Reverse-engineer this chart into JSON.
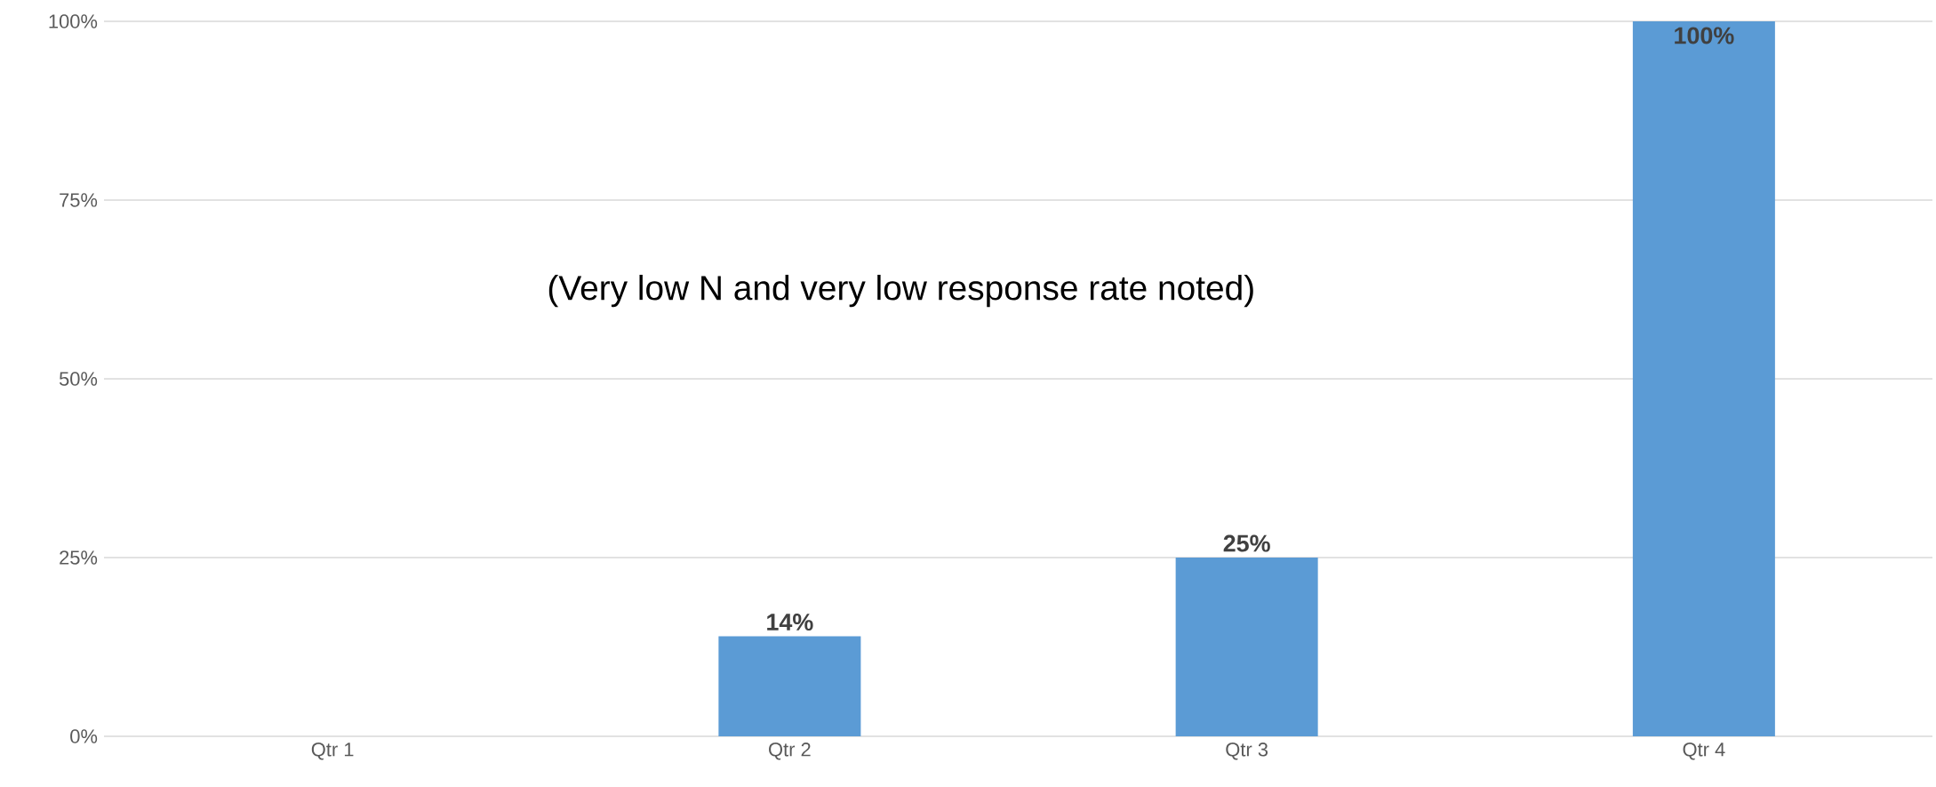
{
  "chart_data": {
    "type": "bar",
    "categories": [
      "Qtr 1",
      "Qtr 2",
      "Qtr 3",
      "Qtr 4"
    ],
    "values": [
      null,
      14,
      25,
      100
    ],
    "value_labels": [
      null,
      "14%",
      "25%",
      "100%"
    ],
    "color": "#5b9bd5",
    "ylim": [
      0,
      100
    ],
    "yticks": [
      {
        "value": 0,
        "label": "0%"
      },
      {
        "value": 25,
        "label": "25%"
      },
      {
        "value": 50,
        "label": "50%"
      },
      {
        "value": 75,
        "label": "75%"
      },
      {
        "value": 100,
        "label": "100%"
      }
    ],
    "grid": "y",
    "annotations": [
      "(Very low N and very low response rate noted)"
    ]
  }
}
